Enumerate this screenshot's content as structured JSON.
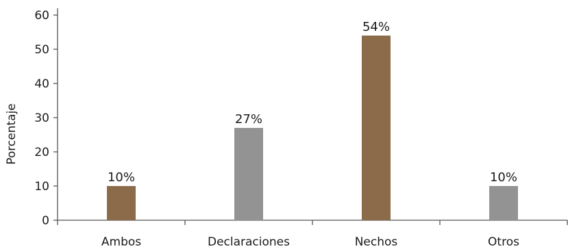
{
  "chart_data": {
    "type": "bar",
    "categories": [
      "Ambos",
      "Declaraciones",
      "Nechos",
      "Otros"
    ],
    "values": [
      10,
      27,
      54,
      10
    ],
    "data_labels": [
      "10%",
      "27%",
      "54%",
      "10%"
    ],
    "ylabel": "Porcentaje",
    "xlabel": "",
    "ylim": [
      0,
      60
    ],
    "yticks": [
      0,
      10,
      20,
      30,
      40,
      50,
      60
    ],
    "grid": false,
    "colors": [
      "#8b6b4a",
      "#939393",
      "#8b6b4a",
      "#939393"
    ]
  }
}
